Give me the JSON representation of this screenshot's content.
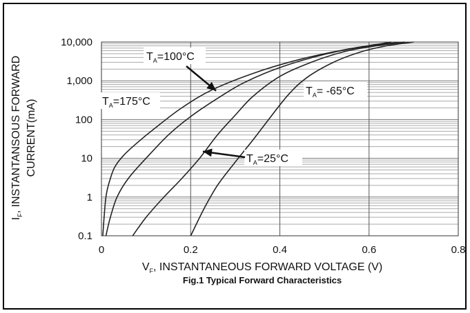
{
  "chart_data": {
    "type": "line",
    "title": "",
    "caption": "Fig.1 Typical Forward Characteristics",
    "xlabel": {
      "main": "V",
      "sub": "F",
      "rest": ", INSTANTANEOUS FORWARD VOLTAGE (V)"
    },
    "ylabel": {
      "line1_main": "I",
      "line1_sub": "F",
      "line1_rest": ", INSTANTANSOUS FORWARD",
      "line2": "CURRENT(mA)"
    },
    "x_scale": "linear",
    "y_scale": "log",
    "xlim": [
      0,
      0.8
    ],
    "ylim": [
      0.1,
      10000
    ],
    "x_ticks": [
      {
        "value": 0,
        "label": "0"
      },
      {
        "value": 0.2,
        "label": "0.2"
      },
      {
        "value": 0.4,
        "label": "0.4"
      },
      {
        "value": 0.6,
        "label": "0.6"
      },
      {
        "value": 0.8,
        "label": "0.8"
      }
    ],
    "y_ticks": [
      {
        "value": 0.1,
        "label": "0.1"
      },
      {
        "value": 1,
        "label": "1"
      },
      {
        "value": 10,
        "label": "10"
      },
      {
        "value": 100,
        "label": "100"
      },
      {
        "value": 1000,
        "label": "1,000"
      },
      {
        "value": 10000,
        "label": "10,000"
      }
    ],
    "grid": true,
    "line_color": "#222222",
    "series": [
      {
        "name": "T_A=175°C",
        "x": [
          0.003,
          0.01,
          0.02,
          0.03,
          0.05,
          0.08,
          0.12,
          0.18,
          0.25,
          0.35,
          0.45,
          0.55,
          0.65
        ],
        "y": [
          0.1,
          1,
          3,
          6,
          12,
          25,
          60,
          200,
          600,
          1700,
          3700,
          6500,
          10000
        ]
      },
      {
        "name": "T_A=100°C",
        "x": [
          0.01,
          0.02,
          0.035,
          0.06,
          0.1,
          0.15,
          0.2,
          0.26,
          0.32,
          0.4,
          0.5,
          0.6,
          0.68
        ],
        "y": [
          0.1,
          0.3,
          1,
          3,
          10,
          40,
          120,
          350,
          900,
          2200,
          4800,
          8000,
          10000
        ]
      },
      {
        "name": "T_A=25°C",
        "x": [
          0.07,
          0.1,
          0.14,
          0.18,
          0.22,
          0.26,
          0.3,
          0.34,
          0.4,
          0.47,
          0.54,
          0.6,
          0.68
        ],
        "y": [
          0.1,
          0.3,
          1,
          3,
          10,
          40,
          130,
          400,
          1300,
          3000,
          5500,
          7500,
          10000
        ]
      },
      {
        "name": "T_A=-65°C",
        "x": [
          0.2,
          0.23,
          0.26,
          0.3,
          0.34,
          0.38,
          0.42,
          0.46,
          0.52,
          0.58,
          0.64,
          0.7
        ],
        "y": [
          0.1,
          0.5,
          2,
          8,
          30,
          120,
          450,
          1200,
          3000,
          5500,
          8000,
          10000
        ]
      }
    ],
    "annotations": [
      {
        "main": "T",
        "sub": "A",
        "rest": "=100°C",
        "arrow_to": {
          "x": 0.26,
          "y": 600
        }
      },
      {
        "main": "T",
        "sub": "A",
        "rest": "=175°C"
      },
      {
        "main": "T",
        "sub": "A",
        "rest": "= -65°C"
      },
      {
        "main": "T",
        "sub": "A",
        "rest": "=25°C",
        "arrow_to": {
          "x": 0.215,
          "y": 15
        }
      }
    ]
  }
}
